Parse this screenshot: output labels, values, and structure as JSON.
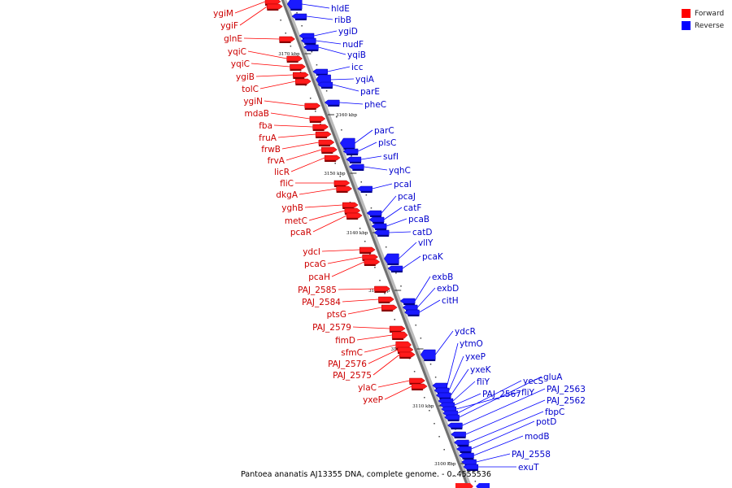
{
  "legend": {
    "forward_label": "Forward",
    "reverse_label": "Reverse",
    "forward_color": "#ff0000",
    "reverse_color": "#0000ff"
  },
  "caption": "Pantoea ananatis AJ13355 DNA, complete genome. - 0..4555536",
  "ticks": [
    "3170 kbp",
    "3160 kbp",
    "3150 kbp",
    "3140 kbp",
    "3130 kbp",
    "3120 kbp",
    "3110 kbp",
    "3100 kbp"
  ],
  "forward_genes": [
    "ygiM",
    "ygiF",
    "glnE",
    "yqiC",
    "yqiC",
    "ygiB",
    "tolC",
    "ygiN",
    "mdaB",
    "fba",
    "fruA",
    "frwB",
    "frvA",
    "licR",
    "fliC",
    "dkgA",
    "yghB",
    "metC",
    "pcaR",
    "ydcI",
    "pcaG",
    "pcaH",
    "PAJ_2585",
    "PAJ_2584",
    "ptsG",
    "PAJ_2579",
    "fimD",
    "sfmC",
    "PAJ_2576",
    "PAJ_2575",
    "ylaC",
    "yxeP"
  ],
  "reverse_genes": [
    "hldE",
    "ribB",
    "ygiD",
    "nudF",
    "yqiB",
    "icc",
    "yqiA",
    "parE",
    "pheC",
    "parC",
    "plsC",
    "sufI",
    "yqhC",
    "pcaI",
    "pcaJ",
    "catF",
    "pcaB",
    "catD",
    "vllY",
    "pcaK",
    "exbB",
    "exbD",
    "citH",
    "ydcR",
    "ytmO",
    "yxeP",
    "yxeK",
    "fliY",
    "PAJ_2567",
    "fliY",
    "yecS",
    "gluA",
    "PAJ_2563",
    "PAJ_2562",
    "fbpC",
    "potD",
    "modB",
    "PAJ_2558",
    "exuT"
  ]
}
